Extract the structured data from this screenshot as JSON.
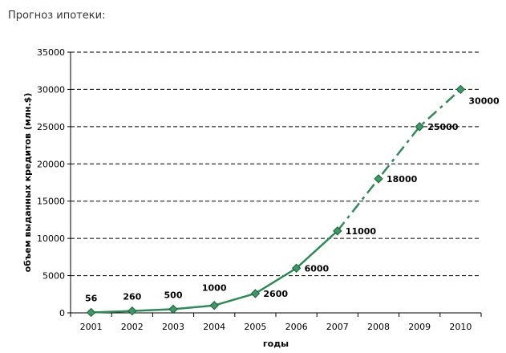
{
  "page": {
    "heading": "Прогноз ипотеки:"
  },
  "colors": {
    "line": "#2e8b57",
    "marker": "#3a9a64",
    "marker_edge": "#1f5f3a",
    "grid": "#000000",
    "text": "#000000"
  },
  "chart_data": {
    "type": "line",
    "title": "Прогноз ипотеки:",
    "xlabel": "годы",
    "ylabel": "объем выданных кредитов (млн.$)",
    "categories": [
      "2001",
      "2002",
      "2003",
      "2004",
      "2005",
      "2006",
      "2007",
      "2008",
      "2009",
      "2010"
    ],
    "series": [
      {
        "name": "объем выданных кредитов",
        "values": [
          56,
          260,
          500,
          1000,
          2600,
          6000,
          11000,
          18000,
          25000,
          30000
        ],
        "labels": [
          "56",
          "260",
          "500",
          "1000",
          "2600",
          "6000",
          "11000",
          "18000",
          "25000",
          "30000"
        ],
        "forecast_from_index": 6
      }
    ],
    "ylim": [
      0,
      35000
    ],
    "yticks": [
      "0",
      "5000",
      "10000",
      "15000",
      "20000",
      "25000",
      "30000",
      "35000"
    ],
    "grid": true,
    "grid_style": "dashed"
  }
}
